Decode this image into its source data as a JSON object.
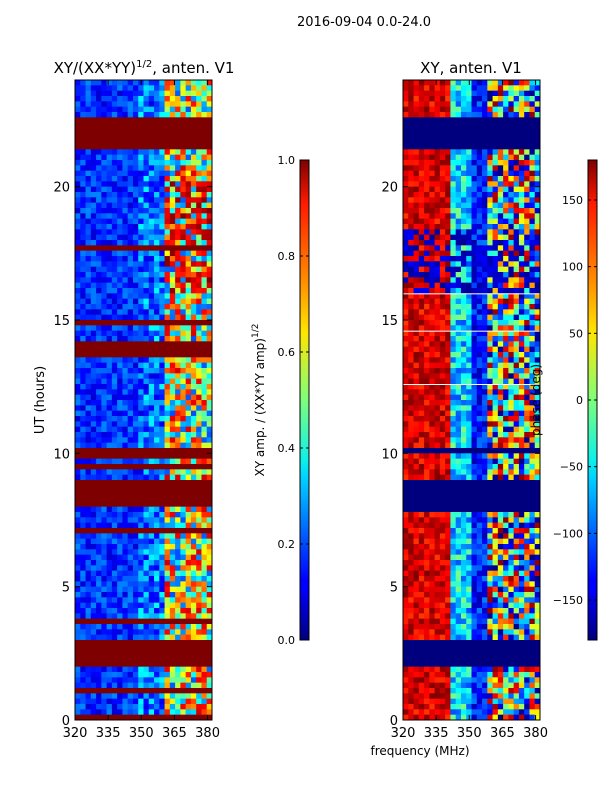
{
  "figure_title": "2016-09-04 0.0-24.0",
  "shared_xlabel": "frequency (MHz)",
  "chart_data": [
    {
      "type": "heatmap",
      "title_main": "XY/(XX*YY)",
      "title_sup": "1/2",
      "title_tail": ", anten. V1",
      "xlabel": "",
      "ylabel": "UT (hours)",
      "xlim": [
        320,
        382
      ],
      "ylim": [
        0,
        24
      ],
      "xticks": [
        "320",
        "335",
        "350",
        "365",
        "380"
      ],
      "xtick_values": [
        320,
        335,
        350,
        365,
        380
      ],
      "yticks": [
        "0",
        "5",
        "10",
        "15",
        "20"
      ],
      "ytick_values": [
        0,
        5,
        10,
        15,
        20
      ],
      "flagged_bands_hours": [
        [
          0.0,
          0.25
        ],
        [
          1.05,
          1.15
        ],
        [
          2.0,
          3.05
        ],
        [
          8.0,
          9.0
        ],
        [
          9.8,
          10.3
        ],
        [
          13.9,
          14.2
        ],
        [
          21.5,
          22.7
        ]
      ],
      "colorbar": {
        "label_main": "XY amp. / (XX*YY amp)",
        "label_sup": "1/2",
        "range": [
          0.0,
          1.0
        ],
        "ticks": [
          "0.0",
          "0.2",
          "0.4",
          "0.6",
          "0.8",
          "1.0"
        ],
        "tick_values": [
          0.0,
          0.2,
          0.4,
          0.6,
          0.8,
          1.0
        ]
      }
    },
    {
      "type": "heatmap",
      "title_main": "XY, anten. V1",
      "xlabel": "frequency (MHz)",
      "ylabel": "",
      "xlim": [
        320,
        382
      ],
      "ylim": [
        0,
        24
      ],
      "xticks": [
        "320",
        "335",
        "350",
        "365",
        "380"
      ],
      "xtick_values": [
        320,
        335,
        350,
        365,
        380
      ],
      "yticks": [
        "0",
        "5",
        "10",
        "15",
        "20"
      ],
      "ytick_values": [
        0,
        5,
        10,
        15,
        20
      ],
      "flagged_bands_hours": [
        [
          2.0,
          3.05
        ],
        [
          7.8,
          9.0
        ],
        [
          9.9,
          10.3
        ],
        [
          21.5,
          22.7
        ]
      ],
      "colorbar": {
        "label": "phase (deg)",
        "range": [
          -180,
          180
        ],
        "ticks": [
          "−150",
          "−100",
          "−50",
          "0",
          "50",
          "100",
          "150"
        ],
        "tick_values": [
          -150,
          -100,
          -50,
          0,
          50,
          100,
          150
        ]
      }
    }
  ]
}
